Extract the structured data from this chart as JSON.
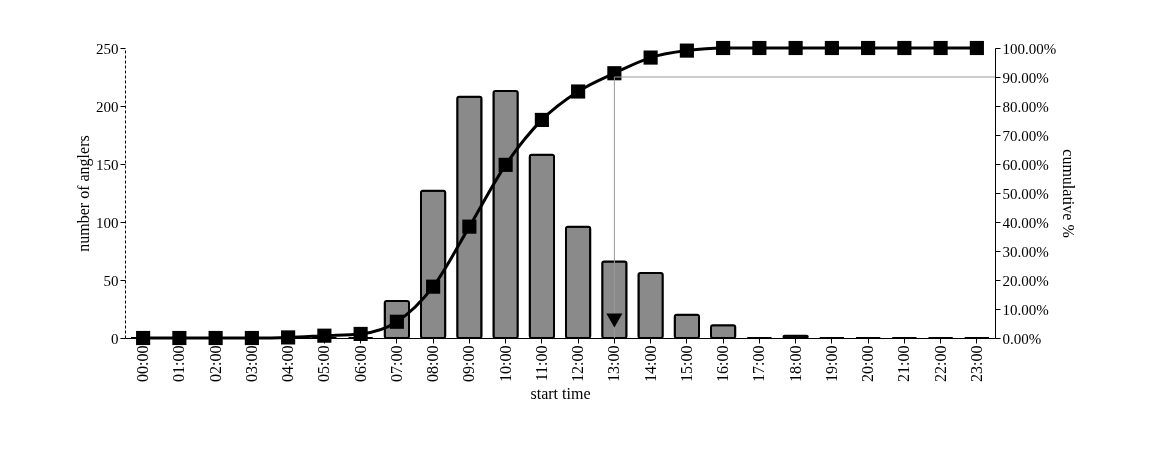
{
  "chart_data": {
    "type": "bar",
    "xlabel": "start time",
    "ylabel": "number of anglers",
    "y2label": "cumulative %",
    "categories": [
      "00:00",
      "01:00",
      "02:00",
      "03:00",
      "04:00",
      "05:00",
      "06:00",
      "07:00",
      "08:00",
      "09:00",
      "10:00",
      "11:00",
      "12:00",
      "13:00",
      "14:00",
      "15:00",
      "16:00",
      "17:00",
      "18:00",
      "19:00",
      "20:00",
      "21:00",
      "22:00",
      "23:00"
    ],
    "series": [
      {
        "color": "#8a8a8a",
        "values": [
          0,
          0,
          0,
          0,
          0,
          0,
          0,
          32,
          127,
          208,
          213,
          158,
          96,
          66,
          56,
          20,
          11,
          0,
          2,
          0,
          0,
          0,
          0,
          0
        ]
      },
      {
        "type": "line",
        "axis": "y2",
        "color": "#000000",
        "marker": "square",
        "values": [
          0,
          0,
          0,
          0,
          0.2,
          0.8,
          1.4,
          5.6,
          17.7,
          38.4,
          59.7,
          75.2,
          85,
          91.3,
          96.7,
          99.1,
          100,
          100,
          100,
          100,
          100,
          100,
          100,
          100
        ]
      }
    ],
    "ylim": [
      0,
      250
    ],
    "yticks": [
      0,
      50,
      100,
      150,
      200,
      250
    ],
    "y2lim": [
      0,
      100
    ],
    "y2ticks": [
      {
        "value": 0,
        "label": "0.00%"
      },
      {
        "value": 10,
        "label": "10.00%"
      },
      {
        "value": 20,
        "label": "20.00%"
      },
      {
        "value": 30,
        "label": "30.00%"
      },
      {
        "value": 40,
        "label": "40.00%"
      },
      {
        "value": 50,
        "label": "50.00%"
      },
      {
        "value": 60,
        "label": "60.00%"
      },
      {
        "value": 70,
        "label": "70.00%"
      },
      {
        "value": 80,
        "label": "80.00%"
      },
      {
        "value": 90,
        "label": "90.00%"
      },
      {
        "value": 100,
        "label": "100.00%"
      }
    ],
    "ref_lines": [
      {
        "axis": "x",
        "value": "13:00",
        "color": "#999999"
      },
      {
        "axis": "y2",
        "value": 90,
        "color": "#999999"
      }
    ],
    "grid": false
  }
}
